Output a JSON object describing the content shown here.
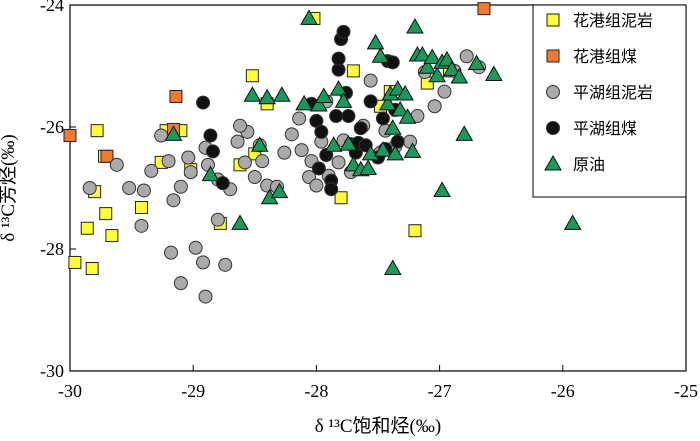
{
  "chart_data": {
    "type": "scatter",
    "xlabel": "δ ¹³C饱和烃(‰)",
    "ylabel": "δ ¹³C芳烃(‰)",
    "xlim": [
      -30,
      -25
    ],
    "ylim": [
      -30,
      -24
    ],
    "xticks": [
      "-30",
      "-29",
      "-28",
      "-27",
      "-26",
      "-25"
    ],
    "yticks": [
      "-24",
      "-26",
      "-28",
      "-30"
    ],
    "legend_position": "top-right",
    "series": [
      {
        "name": "花港组泥岩",
        "marker": "square",
        "color": "#ffff33",
        "points": [
          [
            -29.96,
            -28.22
          ],
          [
            -29.82,
            -28.32
          ],
          [
            -29.86,
            -27.66
          ],
          [
            -29.71,
            -27.42
          ],
          [
            -29.66,
            -27.78
          ],
          [
            -29.8,
            -27.06
          ],
          [
            -29.78,
            -26.06
          ],
          [
            -29.72,
            -26.48
          ],
          [
            -29.42,
            -27.32
          ],
          [
            -29.26,
            -26.58
          ],
          [
            -29.22,
            -26.06
          ],
          [
            -29.1,
            -26.06
          ],
          [
            -29.02,
            -26.7
          ],
          [
            -28.78,
            -27.58
          ],
          [
            -28.62,
            -26.62
          ],
          [
            -28.5,
            -26.44
          ],
          [
            -28.4,
            -25.62
          ],
          [
            -28.52,
            -25.16
          ],
          [
            -28.02,
            -24.22
          ],
          [
            -27.8,
            -27.16
          ],
          [
            -27.7,
            -25.08
          ],
          [
            -27.48,
            -25.66
          ],
          [
            -27.4,
            -25.42
          ],
          [
            -27.2,
            -27.7
          ],
          [
            -27.1,
            -25.28
          ],
          [
            -26.92,
            -25.08
          ]
        ]
      },
      {
        "name": "花港组煤",
        "marker": "square",
        "color": "#f07a30",
        "points": [
          [
            -30.0,
            -26.14
          ],
          [
            -29.7,
            -26.48
          ],
          [
            -29.14,
            -25.5
          ],
          [
            -29.16,
            -26.04
          ],
          [
            -26.64,
            -24.06
          ]
        ]
      },
      {
        "name": "平湖组泥岩",
        "marker": "circle",
        "color": "#aaaaaa",
        "points": [
          [
            -29.84,
            -27.0
          ],
          [
            -29.62,
            -26.62
          ],
          [
            -29.52,
            -27.0
          ],
          [
            -29.4,
            -27.04
          ],
          [
            -29.42,
            -27.62
          ],
          [
            -29.34,
            -26.72
          ],
          [
            -29.26,
            -26.14
          ],
          [
            -29.2,
            -26.56
          ],
          [
            -29.16,
            -27.2
          ],
          [
            -29.18,
            -28.06
          ],
          [
            -29.1,
            -28.56
          ],
          [
            -29.1,
            -26.98
          ],
          [
            -29.04,
            -26.5
          ],
          [
            -29.02,
            -26.74
          ],
          [
            -28.98,
            -27.98
          ],
          [
            -28.92,
            -28.22
          ],
          [
            -28.9,
            -28.78
          ],
          [
            -28.9,
            -26.34
          ],
          [
            -28.88,
            -26.62
          ],
          [
            -28.8,
            -26.86
          ],
          [
            -28.8,
            -27.52
          ],
          [
            -28.74,
            -28.26
          ],
          [
            -28.7,
            -27.02
          ],
          [
            -28.64,
            -26.24
          ],
          [
            -28.58,
            -26.58
          ],
          [
            -28.56,
            -26.08
          ],
          [
            -28.5,
            -26.82
          ],
          [
            -28.44,
            -26.56
          ],
          [
            -28.4,
            -26.96
          ],
          [
            -28.62,
            -25.98
          ],
          [
            -28.46,
            -26.3
          ],
          [
            -28.32,
            -26.98
          ],
          [
            -28.26,
            -26.42
          ],
          [
            -28.2,
            -26.12
          ],
          [
            -28.12,
            -26.38
          ],
          [
            -28.06,
            -26.82
          ],
          [
            -28.04,
            -26.56
          ],
          [
            -28.0,
            -26.96
          ],
          [
            -27.96,
            -26.24
          ],
          [
            -27.9,
            -26.8
          ],
          [
            -27.82,
            -26.58
          ],
          [
            -27.78,
            -26.22
          ],
          [
            -27.72,
            -26.74
          ],
          [
            -27.62,
            -25.98
          ],
          [
            -27.56,
            -25.24
          ],
          [
            -27.48,
            -26.42
          ],
          [
            -27.44,
            -26.06
          ],
          [
            -27.36,
            -26.32
          ],
          [
            -27.24,
            -26.24
          ],
          [
            -27.12,
            -25.1
          ],
          [
            -27.04,
            -25.66
          ],
          [
            -26.96,
            -25.42
          ],
          [
            -26.88,
            -25.08
          ],
          [
            -26.78,
            -24.84
          ],
          [
            -26.68,
            -25.02
          ],
          [
            -27.18,
            -25.82
          ],
          [
            -27.92,
            -25.58
          ],
          [
            -28.14,
            -25.86
          ]
        ]
      },
      {
        "name": "平湖组煤",
        "marker": "circle",
        "color": "#111111",
        "points": [
          [
            -28.92,
            -25.6
          ],
          [
            -28.86,
            -26.14
          ],
          [
            -28.84,
            -26.4
          ],
          [
            -28.76,
            -26.92
          ],
          [
            -28.04,
            -25.62
          ],
          [
            -28.0,
            -25.9
          ],
          [
            -27.96,
            -26.08
          ],
          [
            -27.92,
            -26.46
          ],
          [
            -27.88,
            -26.88
          ],
          [
            -27.84,
            -25.82
          ],
          [
            -27.82,
            -25.06
          ],
          [
            -27.82,
            -24.88
          ],
          [
            -27.8,
            -24.56
          ],
          [
            -27.78,
            -24.44
          ],
          [
            -27.76,
            -25.44
          ],
          [
            -27.74,
            -25.82
          ],
          [
            -27.72,
            -26.28
          ],
          [
            -27.68,
            -26.42
          ],
          [
            -27.66,
            -26.26
          ],
          [
            -27.64,
            -26.02
          ],
          [
            -27.6,
            -26.3
          ],
          [
            -27.56,
            -25.58
          ],
          [
            -27.5,
            -26.5
          ],
          [
            -27.46,
            -25.86
          ],
          [
            -27.44,
            -26.36
          ],
          [
            -27.42,
            -24.92
          ],
          [
            -27.38,
            -24.94
          ],
          [
            -27.36,
            -25.72
          ],
          [
            -27.34,
            -26.24
          ],
          [
            -27.88,
            -27.02
          ],
          [
            -27.98,
            -26.68
          ]
        ]
      },
      {
        "name": "原油",
        "marker": "triangle",
        "color": "#1a9a5a",
        "points": [
          [
            -29.16,
            -26.12
          ],
          [
            -28.86,
            -26.78
          ],
          [
            -28.62,
            -27.58
          ],
          [
            -28.52,
            -25.48
          ],
          [
            -28.46,
            -26.3
          ],
          [
            -28.38,
            -27.16
          ],
          [
            -28.3,
            -27.06
          ],
          [
            -28.28,
            -25.48
          ],
          [
            -28.4,
            -25.52
          ],
          [
            -28.06,
            -24.22
          ],
          [
            -28.1,
            -25.62
          ],
          [
            -27.98,
            -25.64
          ],
          [
            -27.94,
            -25.5
          ],
          [
            -27.86,
            -26.3
          ],
          [
            -27.82,
            -25.38
          ],
          [
            -27.78,
            -25.58
          ],
          [
            -27.74,
            -26.28
          ],
          [
            -27.7,
            -26.62
          ],
          [
            -27.64,
            -26.7
          ],
          [
            -27.58,
            -26.68
          ],
          [
            -27.56,
            -26.44
          ],
          [
            -27.52,
            -24.62
          ],
          [
            -27.48,
            -24.84
          ],
          [
            -27.46,
            -26.38
          ],
          [
            -27.42,
            -25.62
          ],
          [
            -27.4,
            -25.46
          ],
          [
            -27.38,
            -26.02
          ],
          [
            -27.36,
            -26.44
          ],
          [
            -27.34,
            -25.38
          ],
          [
            -27.32,
            -25.72
          ],
          [
            -27.28,
            -25.46
          ],
          [
            -27.26,
            -25.84
          ],
          [
            -27.22,
            -26.4
          ],
          [
            -27.2,
            -24.36
          ],
          [
            -27.18,
            -24.82
          ],
          [
            -27.14,
            -24.82
          ],
          [
            -27.1,
            -25.02
          ],
          [
            -27.06,
            -24.86
          ],
          [
            -27.02,
            -25.16
          ],
          [
            -26.98,
            -24.94
          ],
          [
            -26.94,
            -24.9
          ],
          [
            -26.9,
            -25.06
          ],
          [
            -26.84,
            -25.18
          ],
          [
            -26.8,
            -26.12
          ],
          [
            -26.98,
            -27.04
          ],
          [
            -26.7,
            -24.96
          ],
          [
            -26.56,
            -25.14
          ],
          [
            -25.92,
            -27.58
          ],
          [
            -27.38,
            -28.32
          ]
        ]
      }
    ]
  }
}
